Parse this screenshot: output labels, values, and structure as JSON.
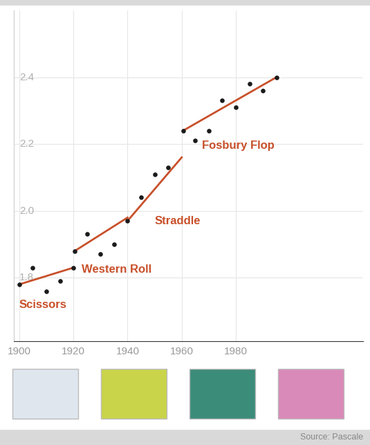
{
  "chart_data": {
    "type": "scatter",
    "source": "Source: Pascale",
    "xlim": [
      1898,
      2027
    ],
    "ylim": [
      1.61,
      2.6
    ],
    "xticks": [
      1900,
      1920,
      1940,
      1960,
      1980
    ],
    "yticks": [
      1.8,
      2.0,
      2.2,
      2.4
    ],
    "grid": true,
    "color": "#c8502a",
    "marker": "circle",
    "series": [
      {
        "name": "Scissors",
        "x": [
          1900,
          1905,
          1910,
          1915,
          1920
        ],
        "values": [
          1.78,
          1.83,
          1.76,
          1.79,
          1.83
        ],
        "trend": {
          "x": [
            1900,
            1920
          ],
          "values": [
            1.78,
            1.83
          ]
        }
      },
      {
        "name": "Western Roll",
        "x": [
          1920.5,
          1925,
          1930,
          1935
        ],
        "values": [
          1.88,
          1.93,
          1.87,
          1.9
        ],
        "trend": {
          "x": [
            1920.5,
            1940
          ],
          "values": [
            1.88,
            1.98
          ]
        }
      },
      {
        "name": "Straddle",
        "x": [
          1940,
          1945,
          1950,
          1955
        ],
        "values": [
          1.97,
          2.04,
          2.11,
          2.13
        ],
        "trend": {
          "x": [
            1940,
            1960
          ],
          "values": [
            1.97,
            2.16
          ]
        }
      },
      {
        "name": "Fosbury Flop",
        "x": [
          1960.5,
          1965,
          1970,
          1975,
          1980,
          1985,
          1990,
          1995
        ],
        "values": [
          2.24,
          2.21,
          2.24,
          2.33,
          2.31,
          2.38,
          2.36,
          2.4
        ],
        "trend": {
          "x": [
            1960.5,
            1995
          ],
          "values": [
            2.24,
            2.4
          ]
        }
      }
    ]
  }
}
